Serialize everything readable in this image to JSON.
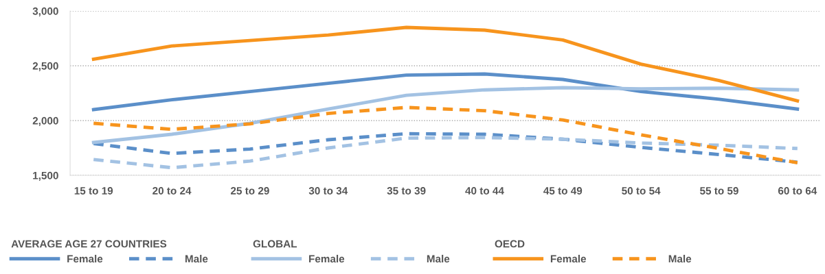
{
  "chart_data": {
    "type": "line",
    "categories": [
      "15 to 19",
      "20 to 24",
      "25 to 29",
      "30 to 34",
      "35 to 39",
      "40 to 44",
      "45 to 49",
      "50 to 54",
      "55 to 59",
      "60 to 64"
    ],
    "series": [
      {
        "name": "Female",
        "color": "#5b8fc9",
        "line_style": "solid",
        "values": [
          2100,
          2190,
          2265,
          2340,
          2415,
          2425,
          2375,
          2265,
          2195,
          2105
        ]
      },
      {
        "name": "Male",
        "color": "#5b8fc9",
        "line_style": "dashed",
        "values": [
          1790,
          1700,
          1740,
          1825,
          1880,
          1875,
          1830,
          1755,
          1690,
          1620
        ]
      },
      {
        "name": "Female",
        "color": "#a3c2e3",
        "line_style": "solid",
        "values": [
          1800,
          1875,
          1975,
          2105,
          2230,
          2280,
          2300,
          2290,
          2295,
          2280
        ]
      },
      {
        "name": "Male",
        "color": "#a3c2e3",
        "line_style": "dashed",
        "values": [
          1645,
          1570,
          1630,
          1750,
          1840,
          1845,
          1830,
          1795,
          1775,
          1745
        ]
      },
      {
        "name": "Female",
        "color": "#f7941d",
        "line_style": "solid",
        "values": [
          2560,
          2680,
          2730,
          2780,
          2850,
          2825,
          2735,
          2515,
          2365,
          2180
        ]
      },
      {
        "name": "Male",
        "color": "#f7941d",
        "line_style": "dashed",
        "values": [
          1975,
          1920,
          1970,
          2065,
          2120,
          2090,
          2005,
          1870,
          1745,
          1615
        ]
      }
    ],
    "annotations": [
      "AVERAGE AGE 27 COUNTRIES",
      "GLOBAL",
      "OECD"
    ],
    "ylim": [
      1500,
      3000
    ],
    "yticks": [
      {
        "value": 1500,
        "label": "1,500"
      },
      {
        "value": 2000,
        "label": "2,000"
      },
      {
        "value": 2500,
        "label": "2,500"
      },
      {
        "value": 3000,
        "label": "3,000"
      }
    ],
    "grid": "y",
    "legend": "bottom",
    "marker": "none"
  }
}
